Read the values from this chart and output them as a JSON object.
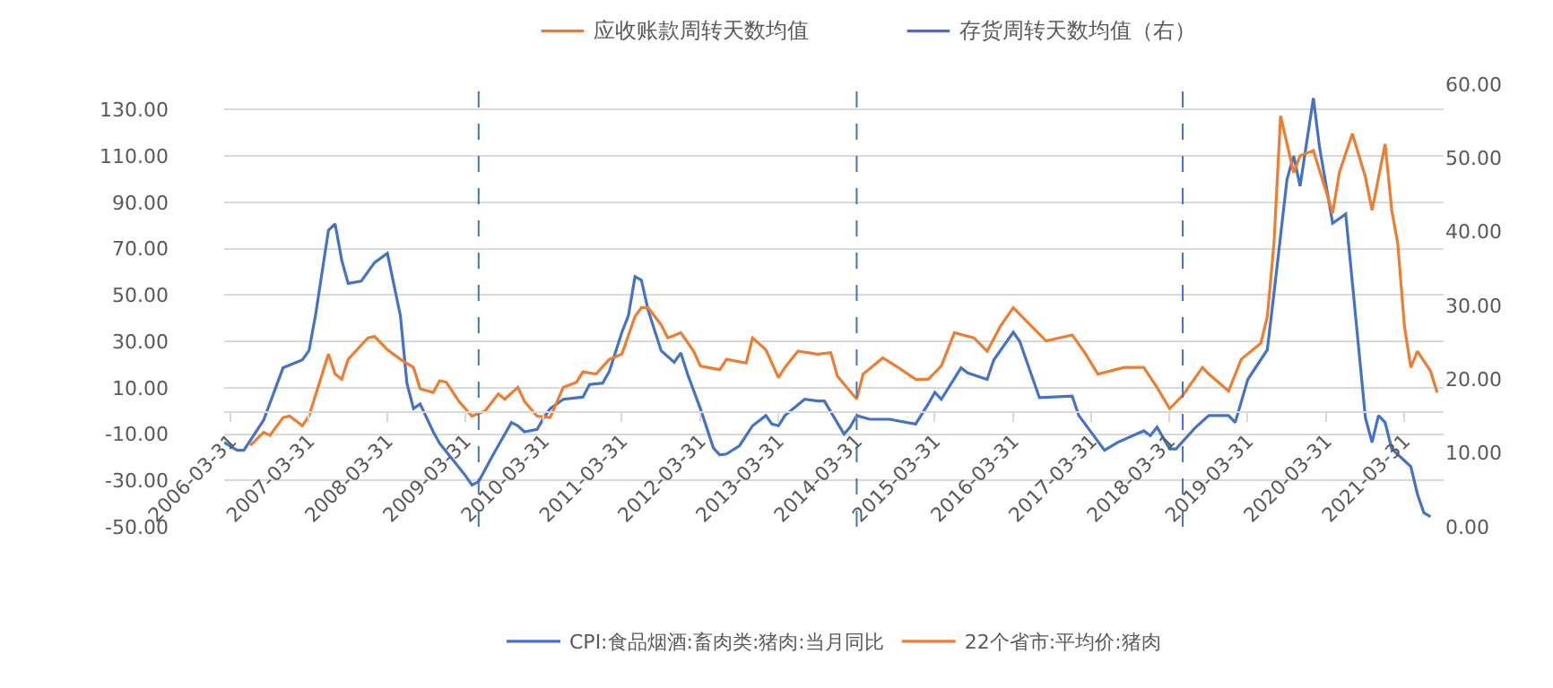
{
  "chart_data": {
    "type": "line",
    "annotations": [
      "应收账款周转天数均值",
      "存货周转天数均值（右）"
    ],
    "series": [
      {
        "name": "CPI:食品烟酒:畜肉类:猪肉:当月同比",
        "color": "#4472c4",
        "x": [
          "2006-03",
          "2006-05",
          "2006-06",
          "2006-09",
          "2006-12",
          "2007-03",
          "2007-04",
          "2007-05",
          "2007-07",
          "2007-08",
          "2007-09",
          "2007-10",
          "2007-12",
          "2008-02",
          "2008-04",
          "2008-06",
          "2008-07",
          "2008-08",
          "2008-09",
          "2008-11",
          "2008-12",
          "2009-04",
          "2009-05",
          "2009-06",
          "2009-08",
          "2009-11",
          "2009-12",
          "2010-01",
          "2010-03",
          "2010-04",
          "2010-05",
          "2010-07",
          "2010-10",
          "2010-11",
          "2011-01",
          "2011-02",
          "2011-04",
          "2011-05",
          "2011-06",
          "2011-07",
          "2011-08",
          "2011-10",
          "2011-12",
          "2012-01",
          "2012-02",
          "2012-04",
          "2012-06",
          "2012-07",
          "2012-08",
          "2012-10",
          "2012-12",
          "2013-02",
          "2013-03",
          "2013-04",
          "2013-05",
          "2013-08",
          "2013-10",
          "2013-11",
          "2014-02",
          "2014-03",
          "2014-04",
          "2014-06",
          "2014-09",
          "2015-01",
          "2015-03",
          "2015-04",
          "2015-05",
          "2015-08",
          "2015-09",
          "2015-12",
          "2016-01",
          "2016-04",
          "2016-05",
          "2016-08",
          "2017-01",
          "2017-02",
          "2017-06",
          "2017-08",
          "2017-12",
          "2018-01",
          "2018-02",
          "2018-04",
          "2018-05",
          "2018-08",
          "2018-10",
          "2019-01",
          "2019-02",
          "2019-04",
          "2019-07",
          "2019-08",
          "2019-10",
          "2019-11",
          "2019-12",
          "2020-02",
          "2020-03",
          "2020-05",
          "2020-07",
          "2020-10",
          "2020-11",
          "2020-12",
          "2021-01",
          "2021-02",
          "2021-05",
          "2021-06",
          "2021-07",
          "2021-08"
        ],
        "values": [
          -13.6,
          -17,
          -17,
          -4,
          18.6,
          22,
          26,
          41,
          78,
          80.7,
          65,
          55,
          56,
          64,
          68,
          41,
          12,
          1,
          3,
          -9,
          -14,
          -28,
          -32,
          -30.5,
          -20,
          -5,
          -6.4,
          -9,
          -8,
          -3,
          1,
          5,
          6,
          11.4,
          12,
          17,
          34,
          41,
          58,
          56.4,
          43.6,
          26,
          21,
          25,
          16,
          1,
          -16,
          -19,
          -18.6,
          -15,
          -6.4,
          -2,
          -5.7,
          -6.4,
          -2,
          5,
          4.3,
          4.3,
          -10,
          -7,
          -2,
          -3.6,
          -3.6,
          -5.7,
          3,
          8,
          5,
          18.6,
          16.4,
          13.6,
          22,
          34,
          30,
          5.7,
          6.4,
          -2,
          -17,
          -13.6,
          -8.6,
          -10.7,
          -7,
          -16.4,
          -16.4,
          -7,
          -2,
          -2,
          -5,
          13.6,
          26.4,
          50.7,
          100,
          110,
          97,
          135,
          113.6,
          81,
          85,
          -3,
          -13.6,
          -2,
          -5,
          -16.4,
          -24,
          -36,
          -44,
          -45.7
        ]
      },
      {
        "name": "22个省市:平均价:猪肉",
        "color": "#ed7d31",
        "axis": "y2",
        "x": [
          "2006-07",
          "2006-09",
          "2006-10",
          "2006-12",
          "2007-01",
          "2007-03",
          "2007-04",
          "2007-05",
          "2007-07",
          "2007-08",
          "2007-09",
          "2007-10",
          "2008-01",
          "2008-02",
          "2008-04",
          "2008-06",
          "2008-08",
          "2008-09",
          "2008-11",
          "2008-12",
          "2009-01",
          "2009-03",
          "2009-05",
          "2009-07",
          "2009-09",
          "2009-10",
          "2009-12",
          "2010-01",
          "2010-03",
          "2010-05",
          "2010-07",
          "2010-09",
          "2010-10",
          "2010-12",
          "2011-02",
          "2011-04",
          "2011-06",
          "2011-07",
          "2011-08",
          "2011-10",
          "2011-11",
          "2012-01",
          "2012-03",
          "2012-04",
          "2012-07",
          "2012-08",
          "2012-11",
          "2012-12",
          "2013-02",
          "2013-04",
          "2013-05",
          "2013-07",
          "2013-10",
          "2013-12",
          "2014-01",
          "2014-04",
          "2014-05",
          "2014-08",
          "2014-10",
          "2015-01",
          "2015-03",
          "2015-05",
          "2015-07",
          "2015-10",
          "2015-12",
          "2016-02",
          "2016-04",
          "2016-06",
          "2016-09",
          "2017-01",
          "2017-03",
          "2017-05",
          "2017-09",
          "2017-12",
          "2018-02",
          "2018-04",
          "2018-06",
          "2018-09",
          "2018-10",
          "2019-01",
          "2019-03",
          "2019-06",
          "2019-07",
          "2019-08",
          "2019-09",
          "2019-11",
          "2019-12",
          "2020-02",
          "2020-04",
          "2020-05",
          "2020-06",
          "2020-08",
          "2020-10",
          "2020-11",
          "2021-01",
          "2021-02",
          "2021-03",
          "2021-04",
          "2021-05",
          "2021-06",
          "2021-08",
          "2021-09"
        ],
        "values": [
          11,
          12.8,
          12.4,
          14.8,
          15,
          13.7,
          15,
          17.8,
          23.4,
          20.7,
          20,
          22.7,
          25.6,
          25.8,
          24,
          22.7,
          21.6,
          18.7,
          18.2,
          19.8,
          19.6,
          17,
          15,
          15.7,
          18,
          17.3,
          18.9,
          17,
          15,
          14.8,
          18.9,
          19.6,
          21,
          20.7,
          22.7,
          23.4,
          28.5,
          29.7,
          29.7,
          27.4,
          25.6,
          26.3,
          23.8,
          21.8,
          21.3,
          22.7,
          22.2,
          25.6,
          24,
          20.2,
          21.6,
          23.8,
          23.4,
          23.6,
          20.4,
          17.3,
          20.7,
          22.9,
          21.8,
          20,
          20,
          21.8,
          26.3,
          25.6,
          23.8,
          27.2,
          29.7,
          27.9,
          25.2,
          26,
          23.6,
          20.7,
          21.6,
          21.6,
          18.9,
          16,
          17.8,
          21.6,
          20.7,
          18.4,
          22.7,
          24.9,
          28.5,
          38.4,
          55.7,
          48,
          50.3,
          51,
          45.4,
          42.5,
          48,
          53.3,
          47.4,
          42.9,
          51.9,
          42.9,
          38.4,
          27.2,
          21.6,
          23.8,
          21.1,
          18.2
        ]
      }
    ],
    "xlim": [
      "2006-03",
      "2021-10"
    ],
    "xticks": [
      "2006-03-31",
      "2007-03-31",
      "2008-03-31",
      "2009-03-31",
      "2010-03-31",
      "2011-03-31",
      "2012-03-31",
      "2013-03-31",
      "2014-03-31",
      "2015-03-31",
      "2016-03-31",
      "2017-03-31",
      "2018-03-31",
      "2019-03-31",
      "2020-03-31",
      "2021-03-31"
    ],
    "ylim": [
      -50,
      141
    ],
    "yticks": [
      {
        "value": -50,
        "label": "-50.00"
      },
      {
        "value": -30,
        "label": "-30.00"
      },
      {
        "value": -10,
        "label": "-10.00"
      },
      {
        "value": 10,
        "label": "10.00"
      },
      {
        "value": 30,
        "label": "30.00"
      },
      {
        "value": 50,
        "label": "50.00"
      },
      {
        "value": 70,
        "label": "70.00"
      },
      {
        "value": 90,
        "label": "90.00"
      },
      {
        "value": 110,
        "label": "110.00"
      },
      {
        "value": 130,
        "label": "130.00"
      }
    ],
    "y2lim": [
      0,
      60
    ],
    "y2ticks": [
      {
        "value": 0,
        "label": "0.00"
      },
      {
        "value": 10,
        "label": "10.00"
      },
      {
        "value": 20,
        "label": "20.00"
      },
      {
        "value": 30,
        "label": "30.00"
      },
      {
        "value": 40,
        "label": "40.00"
      },
      {
        "value": 50,
        "label": "50.00"
      },
      {
        "value": 60,
        "label": "60.00"
      }
    ],
    "ref_lines": [
      {
        "axis": "x",
        "value": "2009-06",
        "color": "#4472c4",
        "line_style": "dashed"
      },
      {
        "axis": "x",
        "value": "2014-04",
        "color": "#4472c4",
        "line_style": "dashed"
      },
      {
        "axis": "x",
        "value": "2018-06",
        "color": "#4472c4",
        "line_style": "dashed"
      }
    ],
    "grid": "y",
    "legend": "bottom",
    "marker": "none",
    "line_style": "solid"
  }
}
